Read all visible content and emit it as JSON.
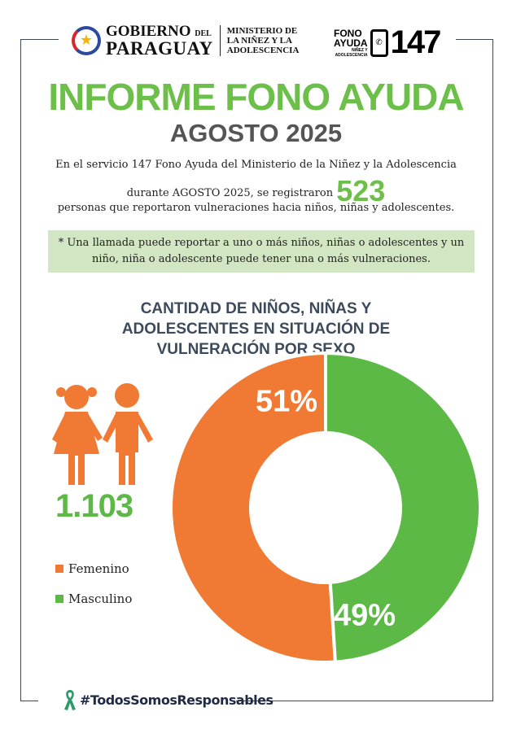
{
  "header": {
    "gov_line1": "GOBIERNO",
    "gov_del": "DEL",
    "gov_line2": "PARAGUAY",
    "ministry": [
      "MINISTERIO DE",
      "LA NIÑEZ Y LA",
      "ADOLESCENCIA"
    ],
    "fono": [
      "FONO",
      "AYUDA"
    ],
    "fono_sub": [
      "NIÑEZ Y",
      "ADOLESCENCIA"
    ],
    "fono_number": "147"
  },
  "title": "INFORME FONO AYUDA",
  "subtitle": "AGOSTO 2025",
  "intro": {
    "line1": "En el servicio 147 Fono Ayuda del Ministerio de la Niñez y la Adolescencia",
    "line2": "durante AGOSTO 2025, se registraron",
    "count": "523",
    "line3": "personas que reportaron vulneraciones hacia niños, niñas y adolescentes."
  },
  "note": "* Una llamada puede reportar a uno o más niños, niñas o adolescentes y un niño, niña o adolescente puede tener una o más vulneraciones.",
  "chart_data": {
    "type": "pie",
    "donut": true,
    "title": "CANTIDAD DE NIÑOS, NIÑAS Y ADOLESCENTES EN SITUACIÓN DE VULNERACIÓN POR SEXO",
    "total": "1.103",
    "categories": [
      "Femenino",
      "Masculino"
    ],
    "values": [
      51,
      49
    ],
    "labels": [
      "51%",
      "49%"
    ],
    "colors": [
      "#f07a33",
      "#5cb946"
    ],
    "legend": "left"
  },
  "footer": {
    "hashtag": "#TodosSomosResponsables"
  }
}
